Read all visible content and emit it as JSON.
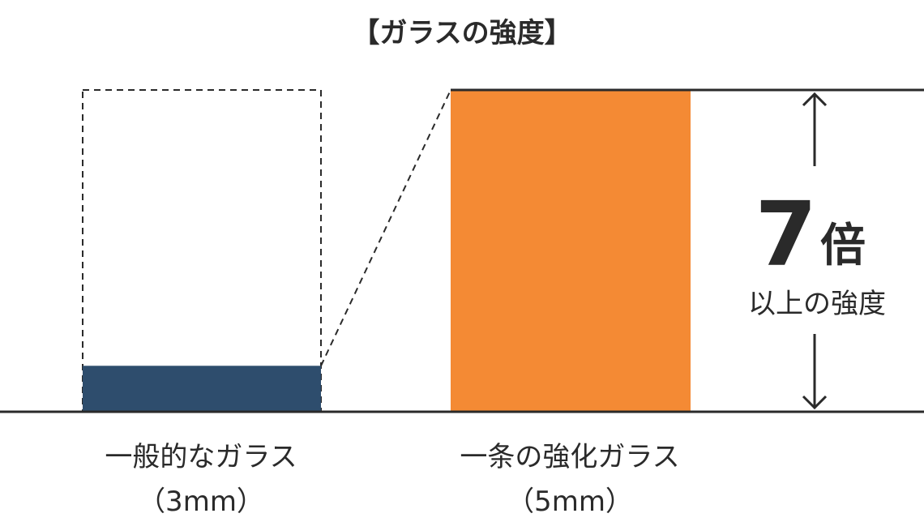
{
  "chart_data": {
    "type": "bar",
    "title": "【ガラスの強度】",
    "categories": [
      {
        "name_line1": "一般的なガラス",
        "name_line2": "（3mm）"
      },
      {
        "name_line1": "一条の強化ガラス",
        "name_line2": "（5mm）"
      }
    ],
    "values": [
      1,
      7
    ],
    "reference_outline_value": 7,
    "ylim": [
      0,
      7
    ],
    "grid": false,
    "legend": "none",
    "colors": {
      "series": [
        "#2e4d6d",
        "#f48a34"
      ],
      "axis": "#2a2a2a",
      "text": "#2a2a2a"
    },
    "annotation": {
      "number": "7",
      "unit": "倍",
      "caption": "以上の強度"
    }
  }
}
